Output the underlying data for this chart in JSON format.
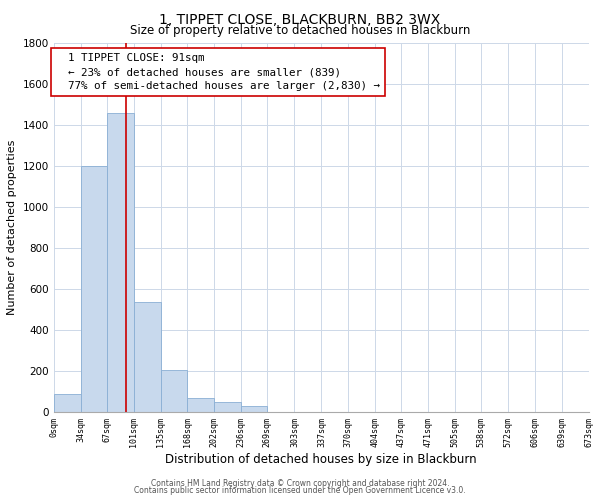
{
  "title": "1, TIPPET CLOSE, BLACKBURN, BB2 3WX",
  "subtitle": "Size of property relative to detached houses in Blackburn",
  "xlabel": "Distribution of detached houses by size in Blackburn",
  "ylabel": "Number of detached properties",
  "bar_color": "#c8d9ed",
  "bar_edge_color": "#8aafd4",
  "vline_color": "#cc0000",
  "vline_x": 91,
  "annotation_line0": "1 TIPPET CLOSE: 91sqm",
  "annotation_line1": "← 23% of detached houses are smaller (839)",
  "annotation_line2": "77% of semi-detached houses are larger (2,830) →",
  "bin_edges": [
    0,
    34,
    67,
    101,
    135,
    168,
    202,
    236,
    269,
    303,
    337,
    370,
    404,
    437,
    471,
    505,
    538,
    572,
    606,
    639,
    673
  ],
  "bin_heights": [
    90,
    1200,
    1460,
    540,
    205,
    70,
    48,
    30,
    0,
    0,
    0,
    0,
    0,
    0,
    0,
    0,
    0,
    0,
    0,
    0
  ],
  "ylim": [
    0,
    1800
  ],
  "yticks": [
    0,
    200,
    400,
    600,
    800,
    1000,
    1200,
    1400,
    1600,
    1800
  ],
  "footer_line1": "Contains HM Land Registry data © Crown copyright and database right 2024.",
  "footer_line2": "Contains public sector information licensed under the Open Government Licence v3.0.",
  "bg_color": "#ffffff",
  "grid_color": "#cdd8e8"
}
